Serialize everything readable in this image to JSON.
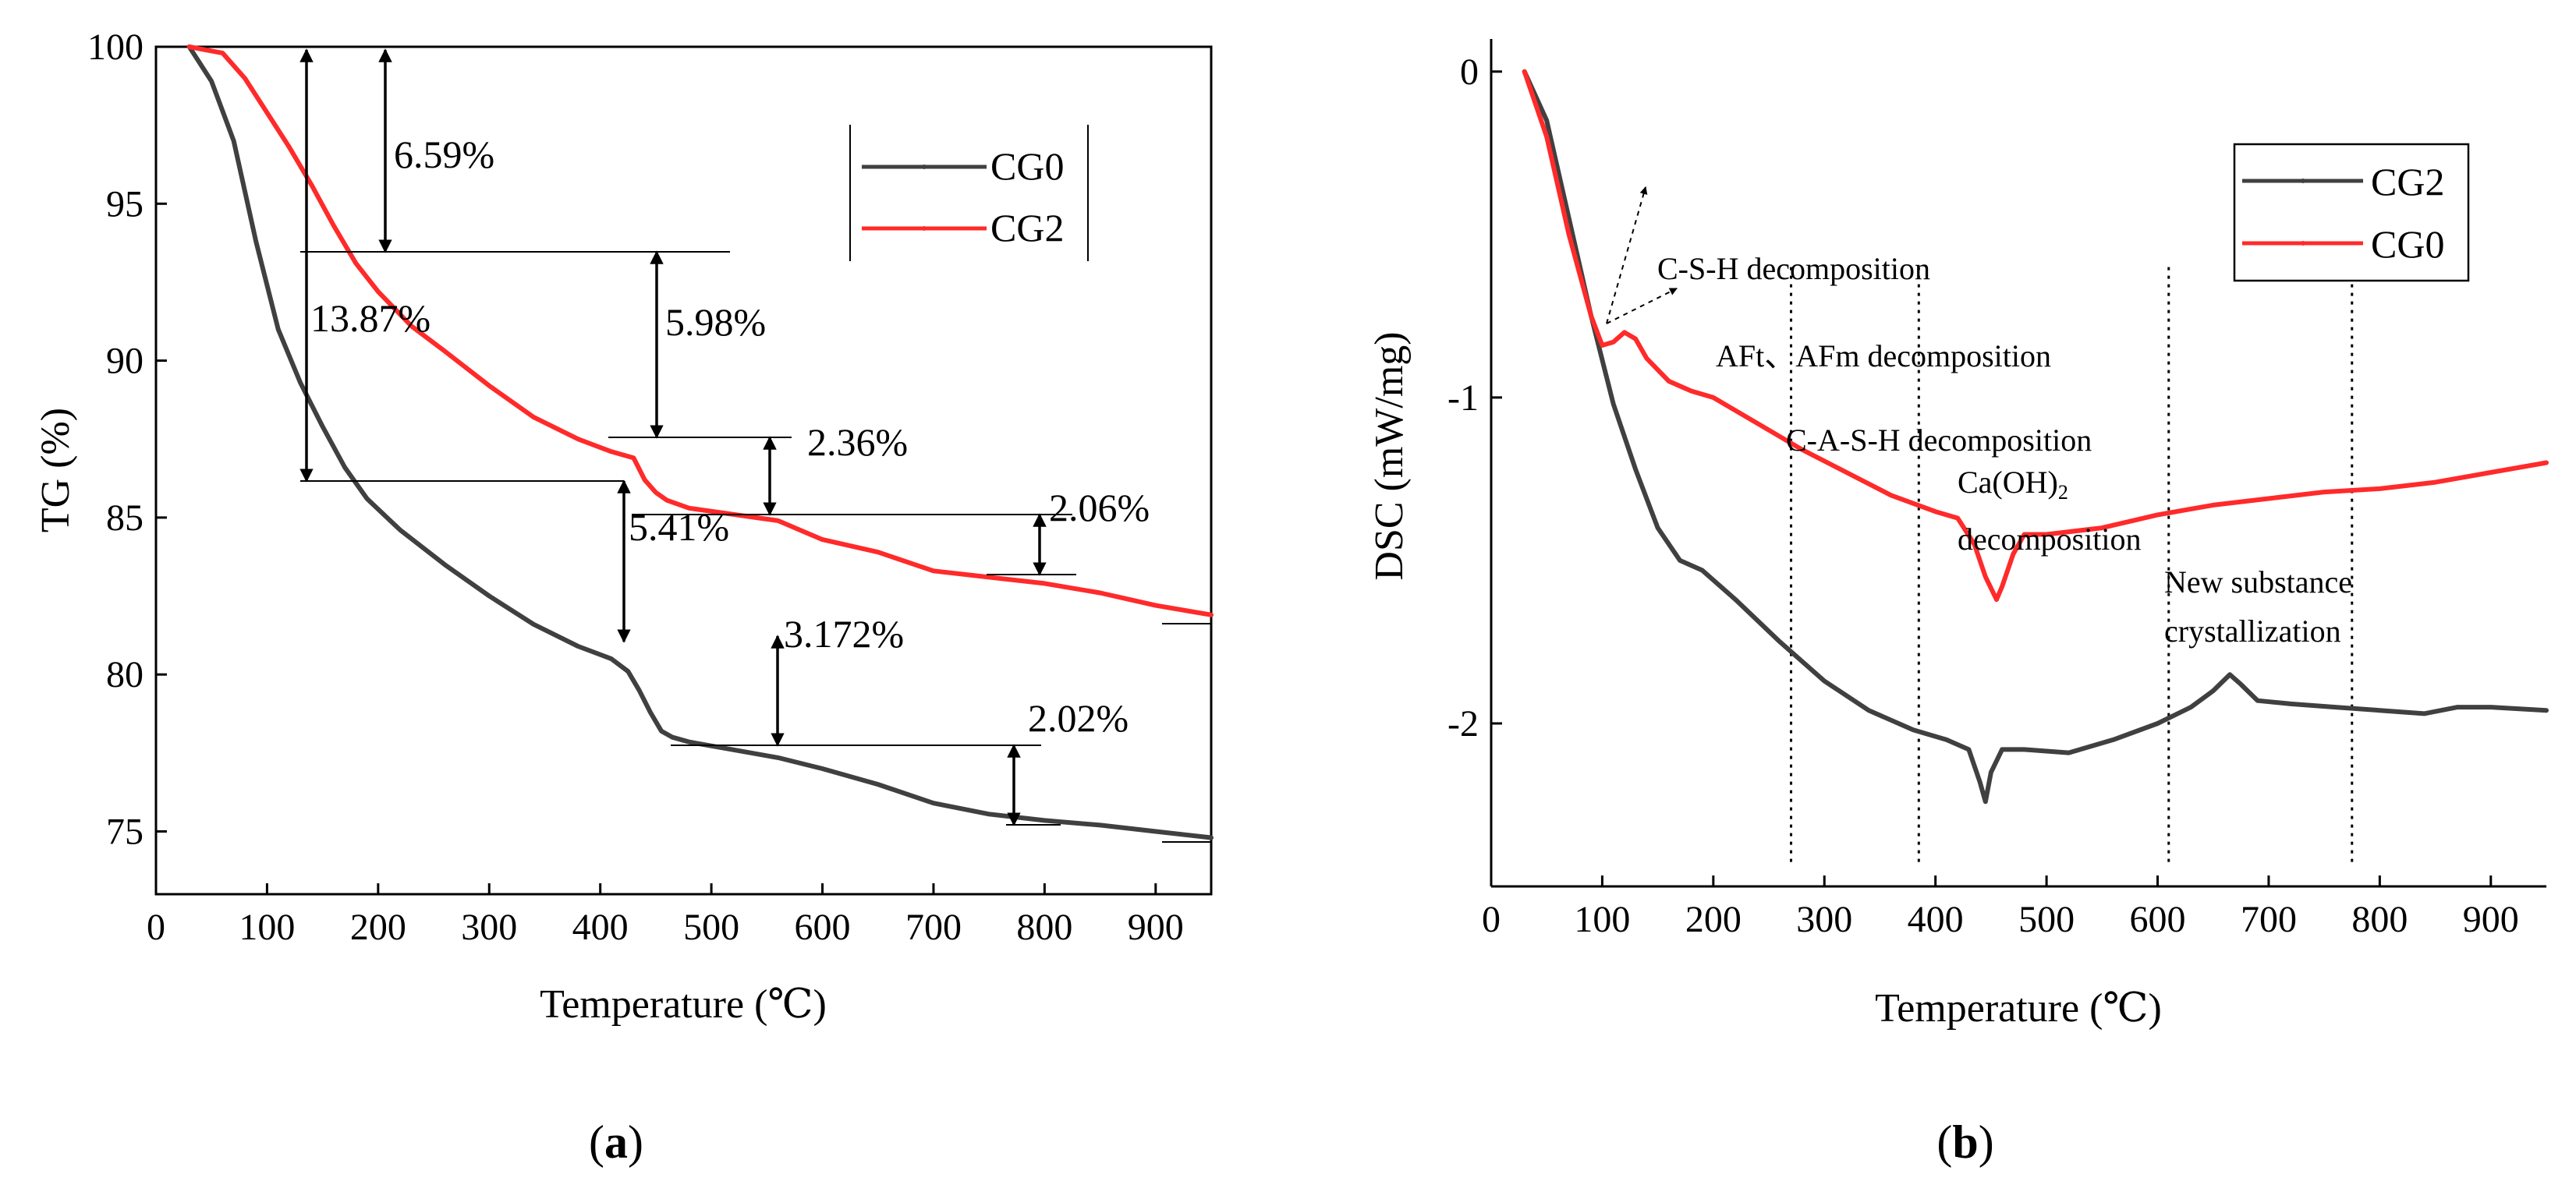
{
  "chart_data": [
    {
      "type": "line",
      "panel": "(a)",
      "caption_open": "(",
      "caption_letter": "a",
      "caption_close": ")",
      "xlabel": "Temperature (℃)",
      "ylabel": "TG (%)",
      "xlim": [
        0,
        950
      ],
      "ylim": [
        73,
        100
      ],
      "xticks": [
        "0",
        "100",
        "200",
        "300",
        "400",
        "500",
        "600",
        "700",
        "800",
        "900"
      ],
      "yticks": [
        "75",
        "80",
        "85",
        "90",
        "95",
        "100"
      ],
      "legend_position": "top-right",
      "series": [
        {
          "name": "CG0",
          "color": "#404040",
          "x": [
            30,
            50,
            70,
            90,
            110,
            130,
            150,
            170,
            190,
            220,
            260,
            300,
            340,
            380,
            410,
            425,
            435,
            445,
            455,
            465,
            480,
            520,
            560,
            600,
            650,
            700,
            750,
            800,
            850,
            900,
            950
          ],
          "y": [
            100,
            98.9,
            97.0,
            93.8,
            91.0,
            89.3,
            87.9,
            86.6,
            85.6,
            84.6,
            83.5,
            82.5,
            81.6,
            80.9,
            80.5,
            80.1,
            79.5,
            78.8,
            78.2,
            78.0,
            77.85,
            77.6,
            77.35,
            77.0,
            76.5,
            75.9,
            75.55,
            75.35,
            75.2,
            75.0,
            74.8
          ]
        },
        {
          "name": "CG2",
          "color": "#ff2a2a",
          "x": [
            30,
            60,
            80,
            100,
            120,
            140,
            160,
            180,
            200,
            230,
            260,
            300,
            340,
            380,
            410,
            430,
            440,
            450,
            460,
            480,
            520,
            560,
            600,
            650,
            700,
            750,
            800,
            850,
            900,
            950
          ],
          "y": [
            100,
            99.8,
            99.0,
            97.9,
            96.8,
            95.6,
            94.3,
            93.1,
            92.2,
            91.1,
            90.3,
            89.2,
            88.2,
            87.5,
            87.1,
            86.9,
            86.2,
            85.8,
            85.55,
            85.3,
            85.1,
            84.9,
            84.3,
            83.9,
            83.3,
            83.1,
            82.9,
            82.6,
            82.2,
            81.9
          ]
        }
      ],
      "annotations": [
        "6.59%",
        "13.87%",
        "5.98%",
        "2.36%",
        "5.41%",
        "2.06%",
        "3.172%",
        "2.02%"
      ]
    },
    {
      "type": "line",
      "panel": "(b)",
      "caption_open": "(",
      "caption_letter": "b",
      "caption_close": ")",
      "xlabel": "Temperature (℃)",
      "ylabel": "DSC (mW/mg)",
      "xlim": [
        0,
        950
      ],
      "ylim": [
        -2.5,
        0.1
      ],
      "xticks": [
        "0",
        "100",
        "200",
        "300",
        "400",
        "500",
        "600",
        "700",
        "800",
        "900"
      ],
      "yticks": [
        "0",
        "-1",
        "-2"
      ],
      "legend_position": "top-right",
      "series": [
        {
          "name": "CG2",
          "color": "#404040",
          "x": [
            30,
            50,
            70,
            90,
            110,
            130,
            150,
            170,
            190,
            220,
            260,
            300,
            340,
            380,
            410,
            430,
            440,
            445,
            450,
            460,
            480,
            520,
            560,
            600,
            630,
            650,
            665,
            675,
            690,
            720,
            760,
            800,
            840,
            870,
            900,
            950
          ],
          "y": [
            0.0,
            -0.15,
            -0.45,
            -0.75,
            -1.02,
            -1.22,
            -1.4,
            -1.5,
            -1.53,
            -1.62,
            -1.75,
            -1.87,
            -1.96,
            -2.02,
            -2.05,
            -2.08,
            -2.18,
            -2.24,
            -2.15,
            -2.08,
            -2.08,
            -2.09,
            -2.05,
            -2.0,
            -1.95,
            -1.9,
            -1.85,
            -1.88,
            -1.93,
            -1.94,
            -1.95,
            -1.96,
            -1.97,
            -1.95,
            -1.95,
            -1.96
          ]
        },
        {
          "name": "CG0",
          "color": "#ff2a2a",
          "x": [
            30,
            50,
            70,
            90,
            100,
            110,
            120,
            130,
            140,
            160,
            180,
            200,
            240,
            280,
            320,
            360,
            400,
            420,
            435,
            445,
            455,
            460,
            470,
            480,
            500,
            550,
            600,
            650,
            700,
            750,
            800,
            850,
            900,
            950
          ],
          "y": [
            0.0,
            -0.2,
            -0.5,
            -0.75,
            -0.84,
            -0.83,
            -0.8,
            -0.82,
            -0.88,
            -0.95,
            -0.98,
            -1.0,
            -1.08,
            -1.16,
            -1.23,
            -1.3,
            -1.35,
            -1.37,
            -1.45,
            -1.55,
            -1.62,
            -1.58,
            -1.48,
            -1.42,
            -1.42,
            -1.4,
            -1.36,
            -1.33,
            -1.31,
            -1.29,
            -1.28,
            -1.26,
            -1.23,
            -1.2
          ]
        }
      ],
      "vlines_x": [
        270,
        385,
        610,
        775
      ],
      "annotations": [
        "C-S-H decomposition",
        "AFt、AFm decomposition",
        "C-A-S-H decomposition",
        "Ca(OH)",
        "2",
        "decomposition",
        "New substance",
        "crystallization"
      ]
    }
  ]
}
